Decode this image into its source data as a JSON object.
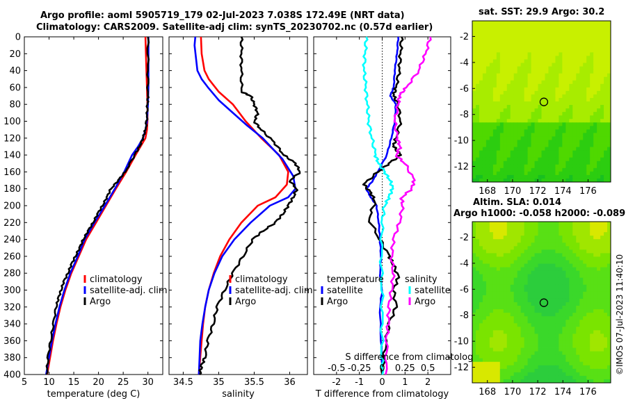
{
  "header": {
    "title_line1": "Argo profile: aoml 5905719_179 02-Jul-2023 7.038S 172.49E (NRT data)",
    "title_line2": "Climatology: CARS2009. Satellite-adj clim: synTS_20230702.nc (0.57d earlier)"
  },
  "side_label": "©IMOS 07-Jul-2023 11:40:10",
  "colors": {
    "climatology": "#ff0000",
    "satellite": "#0000ff",
    "argo": "#000000",
    "sat_temp_diff": "#00ffff",
    "argo_sal_diff": "#ff00ff"
  },
  "chart_data": [
    {
      "type": "line",
      "name": "temperature-profile",
      "xlabel": "temperature (deg C)",
      "ylabel": "",
      "xlim": [
        5,
        33
      ],
      "ylim": [
        400,
        0
      ],
      "xticks": [
        "5",
        "10",
        "15",
        "20",
        "25",
        "30"
      ],
      "xtick_values": [
        5,
        10,
        15,
        20,
        25,
        30
      ],
      "yticks": [
        "0",
        "20",
        "40",
        "60",
        "80",
        "100",
        "120",
        "140",
        "160",
        "180",
        "200",
        "220",
        "240",
        "260",
        "280",
        "300",
        "320",
        "340",
        "360",
        "380",
        "400"
      ],
      "legend": [
        "climatology",
        "satellite-adj. clim",
        "Argo"
      ],
      "series": [
        {
          "name": "climatology",
          "color": "#ff0000",
          "x": [
            29.5,
            29.6,
            29.7,
            29.8,
            29.9,
            29.9,
            29.8,
            29.5,
            28.5,
            27.5,
            25.6,
            23.5,
            21.5,
            19.5,
            17.5,
            16.0,
            14.5,
            13.3,
            12.3,
            11.5,
            10.8,
            10.2,
            9.6
          ],
          "depth": [
            0,
            20,
            40,
            60,
            80,
            100,
            110,
            120,
            130,
            140,
            160,
            180,
            200,
            220,
            240,
            260,
            280,
            300,
            320,
            340,
            360,
            380,
            400
          ]
        },
        {
          "name": "satellite-adj. clim",
          "color": "#0000ff",
          "x": [
            30.1,
            30.1,
            30.1,
            30.1,
            30.0,
            29.8,
            29.5,
            29.0,
            28.0,
            26.8,
            25.2,
            23.3,
            21.3,
            19.2,
            17.2,
            15.8,
            14.3,
            13.1,
            12.1,
            11.3,
            10.6,
            10.0,
            9.4
          ],
          "depth": [
            0,
            20,
            40,
            60,
            80,
            100,
            110,
            120,
            130,
            140,
            160,
            180,
            200,
            220,
            240,
            260,
            280,
            300,
            320,
            340,
            360,
            380,
            400
          ]
        },
        {
          "name": "Argo",
          "color": "#000000",
          "x": [
            30.0,
            30.0,
            30.0,
            29.9,
            29.8,
            29.5,
            29.0,
            28.3,
            27.3,
            25.4,
            24.0,
            22.5,
            21.7,
            20.8,
            19.8,
            18.9,
            17.9,
            16.9,
            16.2,
            15.3,
            14.5,
            13.8,
            13.0,
            12.4,
            11.9,
            11.4,
            10.9,
            10.3,
            9.8,
            9.5
          ],
          "depth": [
            0,
            40,
            70,
            80,
            95,
            110,
            120,
            130,
            140,
            160,
            170,
            180,
            190,
            200,
            210,
            220,
            230,
            240,
            250,
            260,
            270,
            280,
            290,
            300,
            310,
            320,
            340,
            360,
            380,
            400
          ]
        }
      ]
    },
    {
      "type": "line",
      "name": "salinity-profile",
      "xlabel": "salinity",
      "ylabel": "",
      "xlim": [
        34.3,
        36.25
      ],
      "ylim": [
        400,
        0
      ],
      "xticks": [
        "34.5",
        "35",
        "35.5",
        "36"
      ],
      "xtick_values": [
        34.5,
        35,
        35.5,
        36
      ],
      "legend": [
        "climatology",
        "satellite-adj. clim",
        "Argo"
      ],
      "series": [
        {
          "name": "climatology",
          "color": "#ff0000",
          "x": [
            34.75,
            34.76,
            34.8,
            34.86,
            35.0,
            35.2,
            35.38,
            35.6,
            35.85,
            35.98,
            35.96,
            35.8,
            35.55,
            35.32,
            35.15,
            35.02,
            34.93,
            34.86,
            34.81,
            34.78,
            34.76,
            34.74,
            34.72
          ],
          "depth": [
            0,
            20,
            40,
            50,
            65,
            80,
            100,
            120,
            140,
            160,
            175,
            190,
            200,
            220,
            240,
            260,
            280,
            300,
            320,
            340,
            360,
            380,
            400
          ]
        },
        {
          "name": "satellite-adj. clim",
          "color": "#0000ff",
          "x": [
            34.67,
            34.66,
            34.7,
            34.76,
            34.85,
            35.0,
            35.2,
            35.4,
            35.62,
            35.9,
            36.05,
            36.08,
            35.98,
            35.72,
            35.45,
            35.22,
            35.05,
            34.94,
            34.86,
            34.81,
            34.77,
            34.74,
            34.72
          ],
          "depth": [
            0,
            10,
            40,
            50,
            60,
            75,
            90,
            105,
            120,
            145,
            165,
            180,
            190,
            200,
            220,
            240,
            260,
            280,
            300,
            320,
            340,
            360,
            400
          ]
        },
        {
          "name": "Argo",
          "color": "#000000",
          "x": [
            35.32,
            35.32,
            35.32,
            35.32,
            35.45,
            35.5,
            35.55,
            35.5,
            35.6,
            35.78,
            35.92,
            36.08,
            36.15,
            36.0,
            36.1,
            36.05,
            35.98,
            35.9,
            35.8,
            35.62,
            35.48,
            35.34,
            35.2,
            35.08,
            34.98,
            34.92,
            34.85,
            34.8,
            34.76,
            34.73
          ],
          "depth": [
            0,
            20,
            40,
            65,
            70,
            80,
            90,
            100,
            110,
            125,
            140,
            150,
            160,
            170,
            180,
            190,
            200,
            210,
            220,
            230,
            240,
            260,
            280,
            300,
            320,
            340,
            360,
            380,
            390,
            400
          ]
        }
      ]
    },
    {
      "type": "line",
      "name": "difference-profile",
      "xlabel": "T difference from climatology",
      "ylabel": "",
      "top_axis_label": "S difference from climatology",
      "xlim": [
        -3,
        3
      ],
      "ylim": [
        400,
        0
      ],
      "xticks": [
        "-2",
        "-1",
        "0",
        "1",
        "2"
      ],
      "xtick_values": [
        -2,
        -1,
        0,
        1,
        2
      ],
      "s_ticks": [
        "-0.5",
        "-0.25",
        "0",
        "0.25",
        "0.5"
      ],
      "s_tick_values": [
        -0.5,
        -0.25,
        0,
        0.25,
        0.5
      ],
      "s_scale_to_T": 4,
      "legend_temperature_title": "temperature",
      "legend_salinity_title": "salinity",
      "legend": {
        "temperature": [
          "satellite",
          "Argo"
        ],
        "salinity": [
          "satellite",
          "Argo"
        ]
      },
      "series": [
        {
          "name": "temperature satellite",
          "color": "#0000ff",
          "x": [
            0.7,
            0.65,
            0.55,
            0.5,
            0.35,
            0.6,
            0.55,
            0.4,
            0.2,
            -0.2,
            -0.4,
            -0.7,
            -0.5,
            -0.25,
            -0.15,
            -0.1,
            -0.05,
            -0.1,
            0.0,
            -0.1,
            -0.05,
            0.0
          ],
          "depth": [
            0,
            20,
            40,
            60,
            70,
            80,
            100,
            120,
            140,
            160,
            170,
            180,
            190,
            200,
            220,
            240,
            260,
            280,
            300,
            320,
            360,
            400
          ]
        },
        {
          "name": "temperature Argo",
          "color": "#000000",
          "x": [
            0.85,
            0.8,
            0.75,
            0.6,
            0.5,
            0.7,
            0.8,
            0.6,
            0.5,
            0.8,
            0.3,
            -0.2,
            -0.8,
            -0.5,
            -0.3,
            -0.6,
            -0.1,
            0.3,
            0.5,
            0.7,
            0.5,
            0.6,
            0.3,
            0.1,
            0.0
          ],
          "depth": [
            0,
            20,
            40,
            60,
            70,
            80,
            100,
            120,
            130,
            140,
            150,
            160,
            175,
            185,
            195,
            215,
            240,
            260,
            270,
            285,
            300,
            320,
            340,
            370,
            400
          ]
        },
        {
          "name": "salinity satellite",
          "color": "#00ffff",
          "x": [
            -0.7,
            -0.75,
            -0.8,
            -0.72,
            -0.65,
            -0.6,
            -0.45,
            -0.3,
            -0.15,
            0.1,
            0.35,
            0.45,
            0.3,
            0.1,
            0.0,
            -0.05,
            0.0,
            -0.02,
            0.0,
            0.0
          ],
          "depth": [
            0,
            20,
            40,
            60,
            80,
            100,
            120,
            140,
            150,
            160,
            170,
            180,
            190,
            200,
            220,
            260,
            300,
            340,
            380,
            400
          ]
        },
        {
          "name": "salinity Argo",
          "color": "#ff00ff",
          "x": [
            2.1,
            1.9,
            1.6,
            1.05,
            0.75,
            0.7,
            0.55,
            0.65,
            0.8,
            0.6,
            1.0,
            1.4,
            1.3,
            0.85,
            0.9,
            0.75,
            0.5,
            0.4,
            0.5,
            0.4,
            0.3,
            0.25,
            0.2,
            0.15
          ],
          "depth": [
            0,
            20,
            40,
            60,
            70,
            80,
            100,
            120,
            130,
            140,
            150,
            170,
            180,
            190,
            200,
            220,
            240,
            260,
            280,
            300,
            320,
            340,
            360,
            400
          ]
        }
      ]
    },
    {
      "type": "heatmap",
      "name": "sst-map",
      "title": "sat. SST: 29.9 Argo: 30.2",
      "xticks": [
        "168",
        "170",
        "172",
        "174",
        "176"
      ],
      "xtick_values": [
        168,
        170,
        172,
        174,
        176
      ],
      "yticks": [
        "-2",
        "-4",
        "-6",
        "-8",
        "-10",
        "-12"
      ],
      "ytick_values": [
        -2,
        -4,
        -6,
        -8,
        -10,
        -12
      ],
      "xlim": [
        166.8,
        177.8
      ],
      "ylim": [
        -13.2,
        -0.8
      ],
      "marker": {
        "lon": 172.49,
        "lat": -7.038
      },
      "colors": [
        "#c8f000",
        "#a8ec00",
        "#7ee600",
        "#4fd800",
        "#2ccd10",
        "#18c020"
      ]
    },
    {
      "type": "heatmap",
      "name": "sla-map",
      "title_line1": "Altim. SLA: 0.014",
      "title_line2": "Argo h1000: -0.058 h2000: -0.089",
      "xticks": [
        "168",
        "170",
        "172",
        "174",
        "176"
      ],
      "xtick_values": [
        168,
        170,
        172,
        174,
        176
      ],
      "yticks": [
        "-2",
        "-4",
        "-6",
        "-8",
        "-10",
        "-12"
      ],
      "ytick_values": [
        -2,
        -4,
        -6,
        -8,
        -10,
        -12
      ],
      "xlim": [
        166.8,
        177.8
      ],
      "ylim": [
        -13.2,
        -0.8
      ],
      "marker": {
        "lon": 172.49,
        "lat": -7.038
      },
      "colors": [
        "#2ccd3c",
        "#3ad82a",
        "#58e015",
        "#7ae400",
        "#a0e600",
        "#d8e800"
      ]
    }
  ]
}
